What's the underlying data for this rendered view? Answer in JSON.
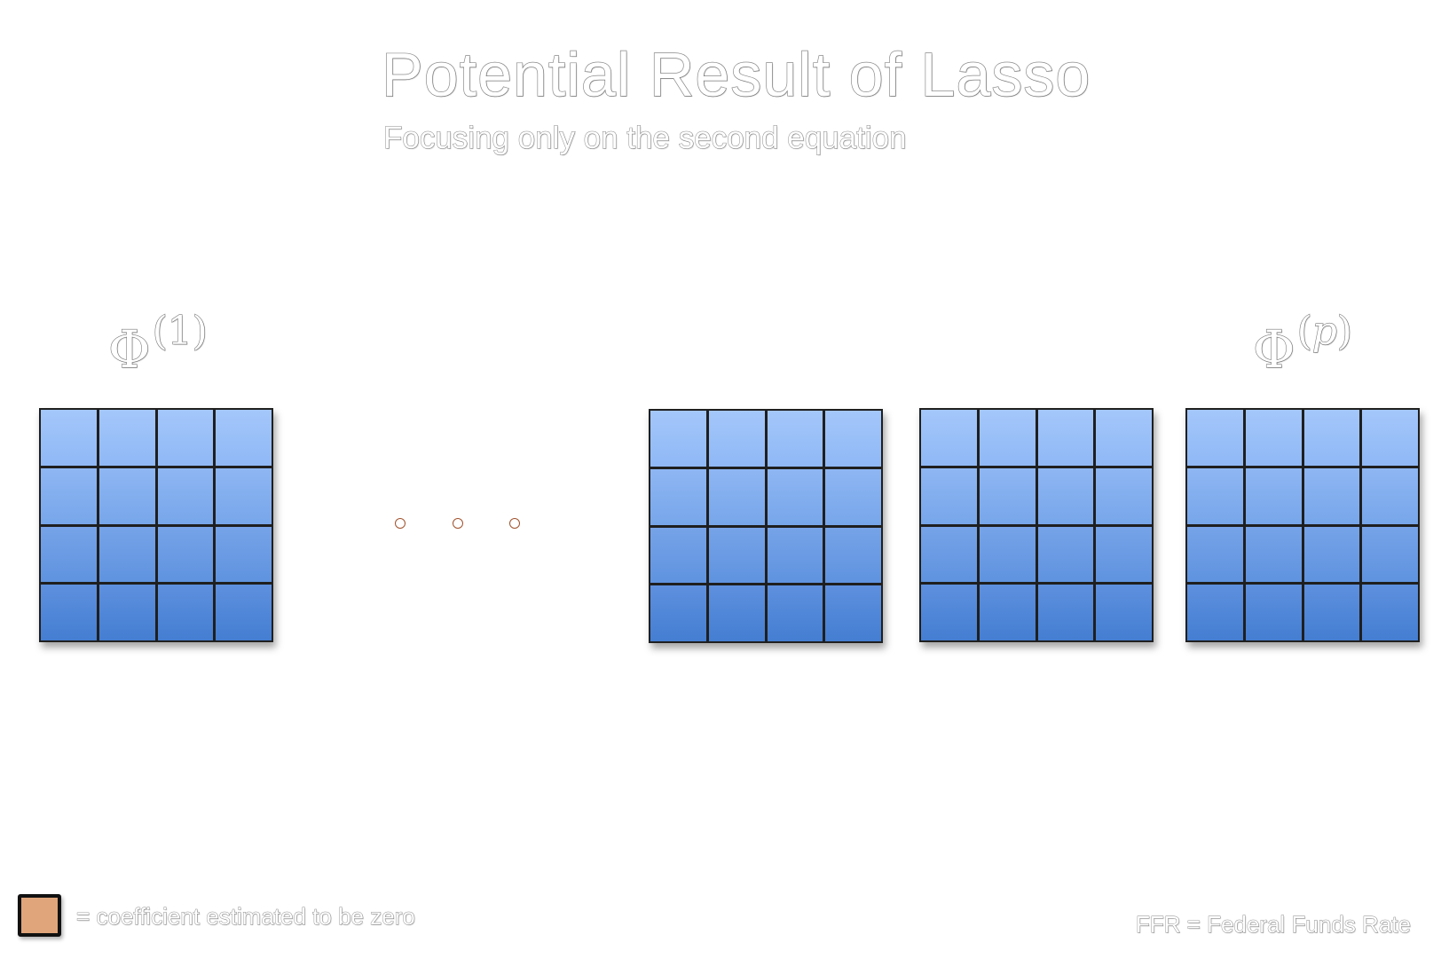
{
  "title": "Potential Result of Lasso",
  "subtitle": "Focusing only on the second equation",
  "labels": {
    "first_symbol": "Φ",
    "first_index": "(1)",
    "last_symbol": "Φ",
    "last_index_open": "(",
    "last_index_var": "p",
    "last_index_close": ")"
  },
  "matrices": {
    "rows": 4,
    "cols": 4,
    "count": 4
  },
  "ellipsis_dots": 3,
  "legend": {
    "swatch_color": "#e0a57a",
    "text": "= coefficient estimated to be zero"
  },
  "note": "FFR = Federal Funds Rate",
  "colors": {
    "cell_top": "#a4c7fb",
    "cell_bottom": "#447ed2",
    "grid_line": "#1f1f1f",
    "dot_border": "#a0522d"
  }
}
